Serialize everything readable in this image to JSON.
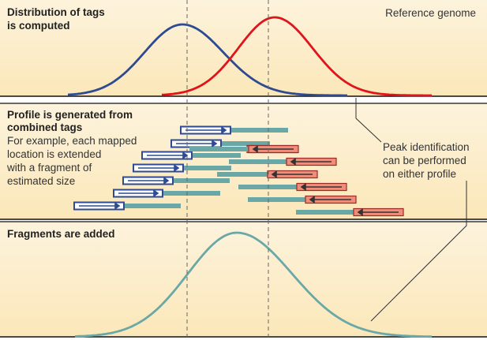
{
  "panels": {
    "top_title": [
      "Distribution of tags",
      "is computed"
    ],
    "top_note": "Reference genome",
    "middle_title": [
      "Profile is generated from",
      "combined tags"
    ],
    "middle_desc": [
      "For example, each mapped",
      "location is extended",
      "with a fragment of",
      "estimated size"
    ],
    "bottom_title": "Fragments are added"
  },
  "annotation": [
    "Peak identification",
    "can be performed",
    "on either profile"
  ],
  "colors": {
    "panel_bg": "#fdf1d4",
    "forward_curve": "#2e4a92",
    "reverse_curve": "#e0141b",
    "fragment": "#6aa8a8",
    "combined_curve": "#6aa8a8",
    "forward_tag_fill": "#ffffff",
    "forward_tag_border": "#2e4a92",
    "reverse_tag_fill": "#f08c7a",
    "reverse_tag_border": "#9a2a22",
    "dashed_line": "#666666",
    "callout_line": "#333333"
  },
  "tags": {
    "forward": [
      {
        "start": 229,
        "tag_end": 292,
        "frag_end": 365
      },
      {
        "start": 217,
        "tag_end": 280,
        "frag_end": 342
      },
      {
        "start": 180,
        "tag_end": 243,
        "frag_end": 305
      },
      {
        "start": 169,
        "tag_end": 232,
        "frag_end": 293
      },
      {
        "start": 156,
        "tag_end": 219,
        "frag_end": 291
      },
      {
        "start": 144,
        "tag_end": 206,
        "frag_end": 279
      },
      {
        "start": 94,
        "tag_end": 157,
        "frag_end": 229
      }
    ],
    "reverse": [
      {
        "frag_start": 240,
        "tag_start": 313,
        "end": 377
      },
      {
        "frag_start": 253,
        "tag_start": 315,
        "end": 378
      },
      {
        "frag_start": 290,
        "tag_start": 363,
        "end": 426
      },
      {
        "frag_start": 275,
        "tag_start": 339,
        "end": 402
      },
      {
        "frag_start": 302,
        "tag_start": 376,
        "end": 439
      },
      {
        "frag_start": 314,
        "tag_start": 387,
        "end": 451
      },
      {
        "frag_start": 375,
        "tag_start": 448,
        "end": 511
      }
    ]
  }
}
